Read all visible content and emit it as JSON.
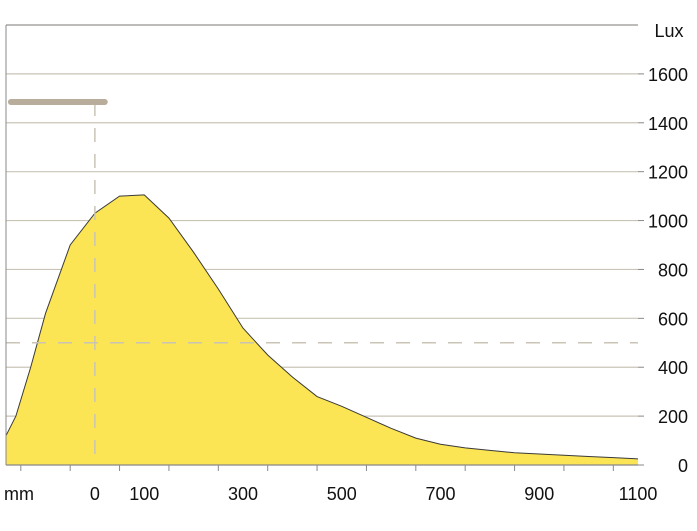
{
  "chart_data": {
    "type": "area",
    "y_unit_label": "Lux",
    "x_unit_label": "mm",
    "x_ticks": [
      0,
      100,
      300,
      500,
      700,
      900,
      1100
    ],
    "x_tick_labels": [
      "0",
      "100",
      "300",
      "500",
      "700",
      "900",
      "1100"
    ],
    "y_ticks": [
      0,
      200,
      400,
      600,
      800,
      1000,
      1200,
      1400,
      1600
    ],
    "y_tick_labels": [
      "0",
      "200",
      "400",
      "600",
      "800",
      "1000",
      "1200",
      "1400",
      "1600"
    ],
    "xlim": [
      -180,
      1100
    ],
    "ylim": [
      0,
      1800
    ],
    "grid": true,
    "reference_line_y": 500,
    "reference_line_x": 0,
    "fixture_bar": {
      "x_start": -170,
      "x_end": 20,
      "y": 1485
    },
    "colors": {
      "area_fill": "#fce554",
      "area_stroke": "#3a3a3a",
      "grid": "#c9c4b6",
      "dashed": "#c9c4b6",
      "fixture": "#b8ad9a",
      "axis": "#888888"
    },
    "series": [
      {
        "x": [
          -180,
          -160,
          -130,
          -100,
          -50,
          0,
          50,
          100,
          150,
          200,
          250,
          300,
          350,
          400,
          450,
          500,
          550,
          600,
          650,
          700,
          750,
          800,
          850,
          900,
          950,
          1000,
          1050,
          1100
        ],
        "values": [
          120,
          200,
          400,
          620,
          900,
          1030,
          1100,
          1105,
          1010,
          870,
          720,
          560,
          450,
          360,
          280,
          240,
          195,
          150,
          110,
          85,
          70,
          60,
          50,
          45,
          40,
          35,
          30,
          25
        ]
      }
    ]
  }
}
